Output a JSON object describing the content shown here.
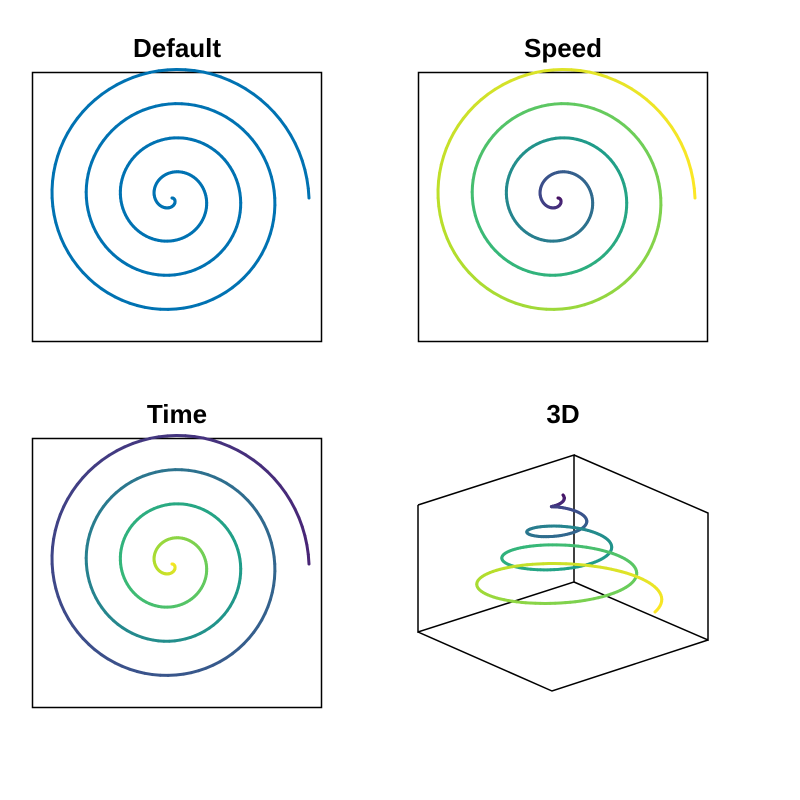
{
  "chart_data": [
    {
      "type": "line",
      "title": "Default",
      "coloring": "uniform",
      "color": "#0072b2",
      "curve": "parametric spiral",
      "parameter": "t",
      "t_range": [
        0,
        4
      ],
      "t_unit": "turns",
      "radius_range": [
        0,
        1
      ],
      "axes": "box",
      "grid": false,
      "ticks": false
    },
    {
      "type": "line",
      "title": "Speed",
      "coloring": "by speed",
      "colormap": "viridis",
      "curve": "parametric spiral",
      "parameter": "t",
      "t_range": [
        0,
        4
      ],
      "t_unit": "turns",
      "radius_range": [
        0,
        1
      ],
      "axes": "box",
      "grid": false,
      "ticks": false
    },
    {
      "type": "line",
      "title": "Time",
      "coloring": "by time (reversed)",
      "colormap": "viridis",
      "curve": "parametric spiral",
      "parameter": "t",
      "t_range": [
        0,
        4
      ],
      "t_unit": "turns",
      "radius_range": [
        0,
        1
      ],
      "axes": "box",
      "grid": false,
      "ticks": false
    },
    {
      "type": "line",
      "title": "3D",
      "coloring": "by time",
      "colormap": "viridis",
      "curve": "3D parametric spiral",
      "parameter": "t",
      "t_range": [
        0,
        4
      ],
      "t_unit": "turns",
      "radius_range": [
        0,
        1
      ],
      "axes": "3D box (back panes)",
      "grid": false,
      "ticks": false
    }
  ],
  "colors": {
    "default_line": "#0072b2",
    "axis": "#000000",
    "viridis": [
      "#440154",
      "#482878",
      "#3e4989",
      "#31688e",
      "#26828e",
      "#1f9e89",
      "#35b779",
      "#6ece58",
      "#b5de2b",
      "#fde725"
    ]
  }
}
